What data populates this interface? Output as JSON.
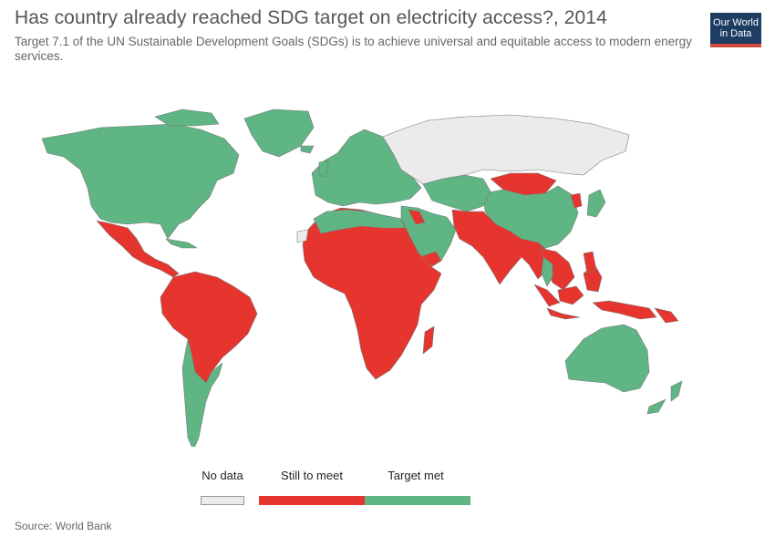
{
  "header": {
    "title": "Has country already reached SDG target on electricity access?, 2014",
    "subtitle": "Target 7.1 of the UN Sustainable Development Goals (SDGs) is to achieve universal and equitable access to modern energy services."
  },
  "logo": {
    "line1": "Our World",
    "line2": "in Data"
  },
  "legend": {
    "no_data": "No data",
    "still": "Still to meet",
    "met": "Target met"
  },
  "colors": {
    "met": "#5fb583",
    "still": "#e5352e",
    "no_data": "#ebebeb",
    "logo_bg": "#1d3d63",
    "logo_accent": "#d14c3e"
  },
  "source": "Source: World Bank"
}
